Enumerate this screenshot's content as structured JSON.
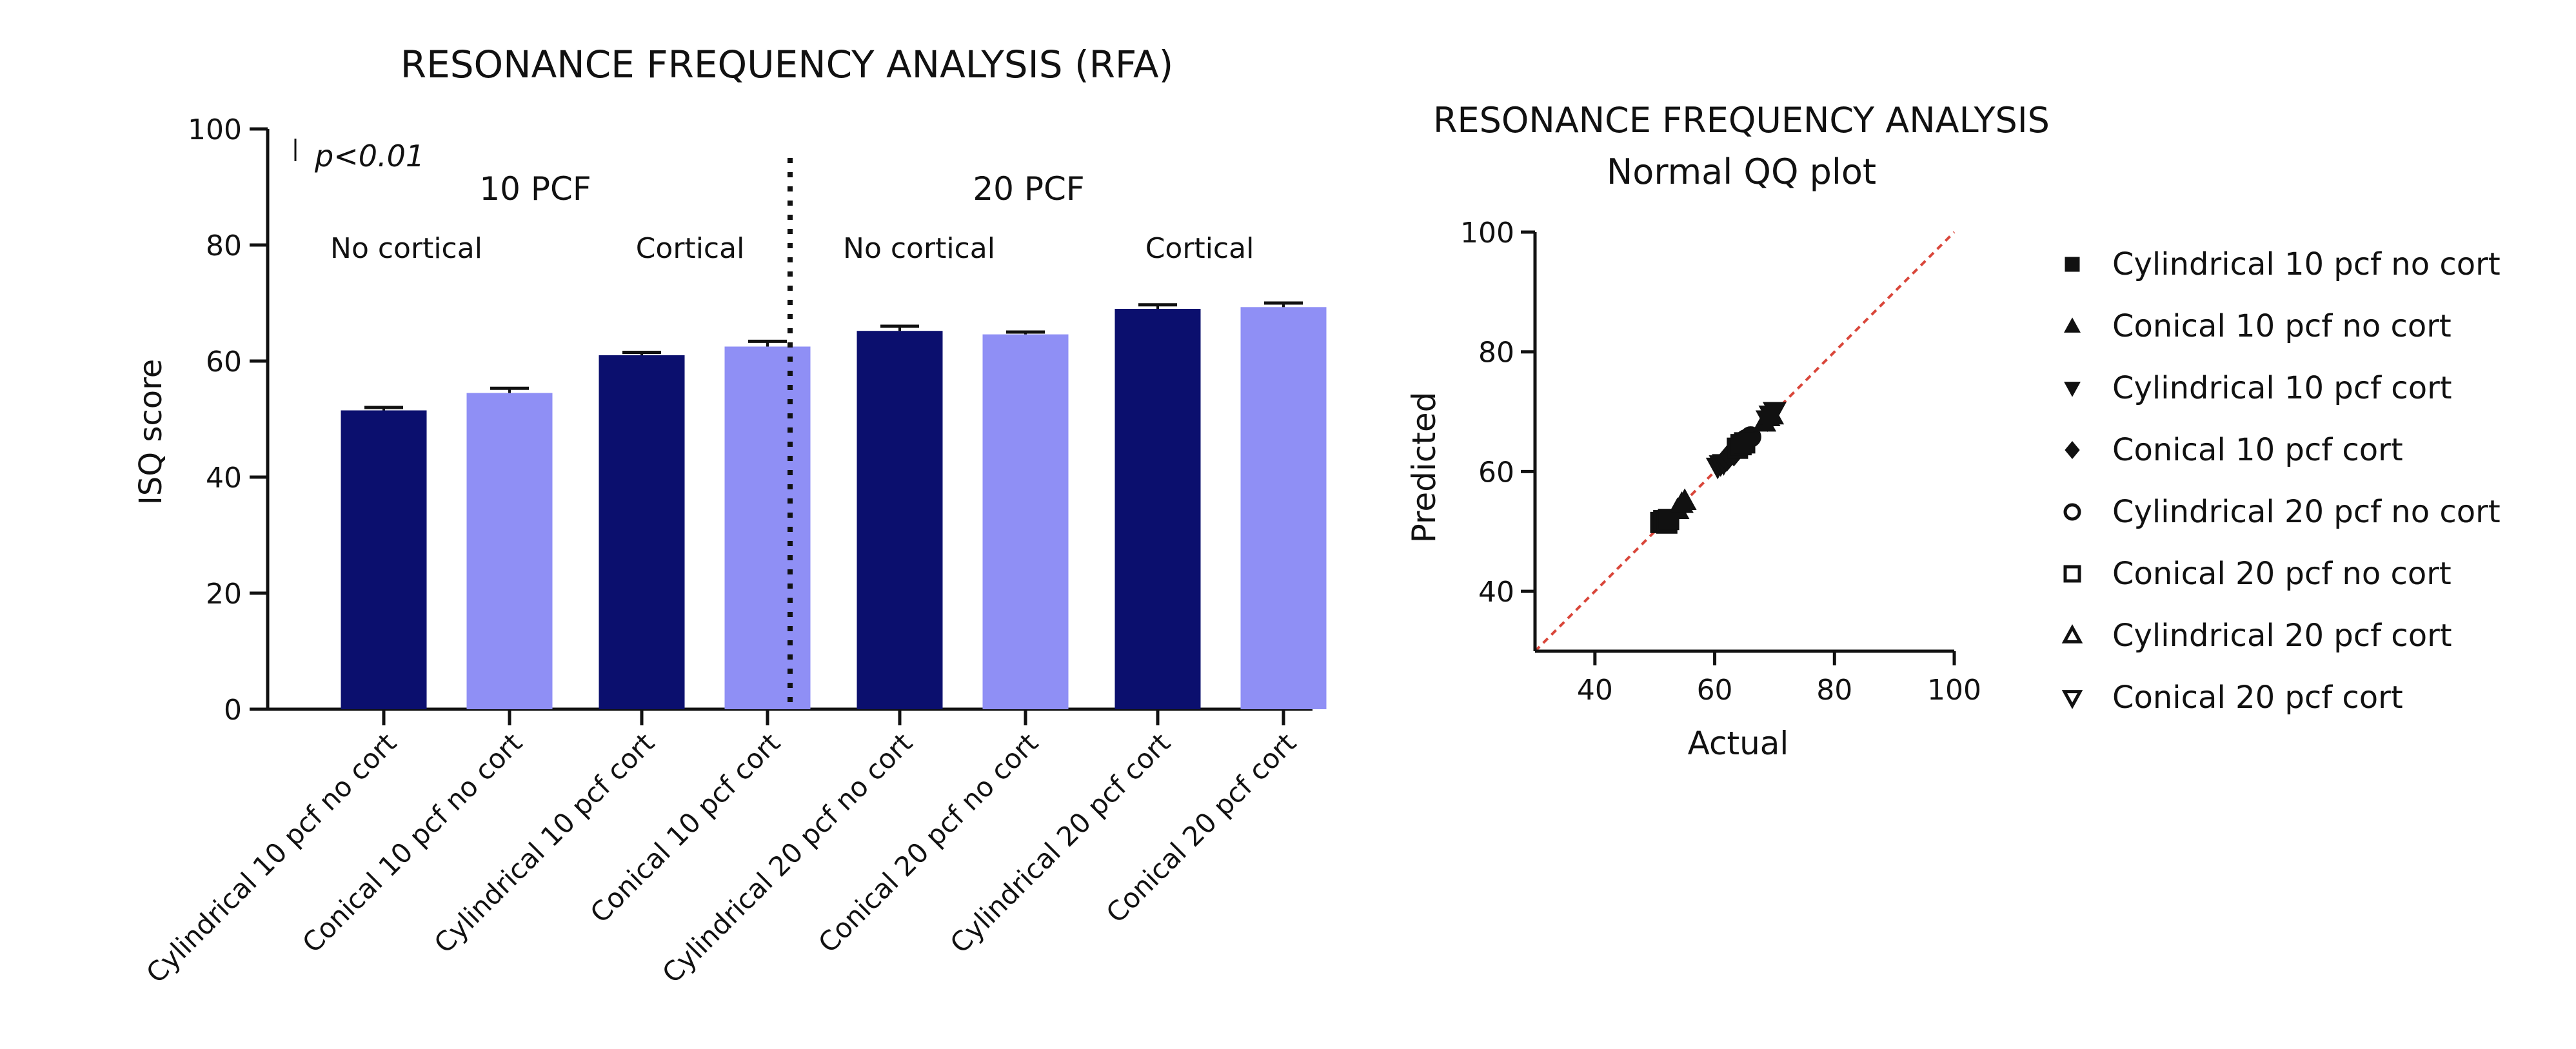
{
  "chart_data": [
    {
      "type": "bar",
      "title": "RESONANCE FREQUENCY ANALYSIS (RFA)",
      "xlabel": "",
      "ylabel": "ISQ score",
      "ylim": [
        0,
        100
      ],
      "yticks": [
        "0",
        "20",
        "40",
        "60",
        "80",
        "100"
      ],
      "annotation": "p<0.01",
      "group_labels": [
        "10 PCF",
        "20 PCF"
      ],
      "subgroup_labels": [
        "No cortical",
        "Cortical",
        "No cortical",
        "Cortical"
      ],
      "categories": [
        "Cylindrical 10 pcf no cort",
        "Conical 10 pcf no cort",
        "Cylindrical 10 pcf cort",
        "Conical 10 pcf cort",
        "Cylindrical 20 pcf no cort",
        "Conical 20 pcf no cort",
        "Cylindrical 20 pcf cort",
        "Conical 20 pcf cort"
      ],
      "values": [
        51.5,
        54.5,
        61.0,
        62.5,
        65.2,
        64.6,
        69.0,
        69.3
      ],
      "errors": [
        0.5,
        0.8,
        0.5,
        0.9,
        0.8,
        0.4,
        0.7,
        0.7
      ],
      "colors": [
        "#0b0f6e",
        "#8f8ff5",
        "#0b0f6e",
        "#8f8ff5",
        "#0b0f6e",
        "#8f8ff5",
        "#0b0f6e",
        "#8f8ff5"
      ]
    },
    {
      "type": "scatter",
      "title": "RESONANCE FREQUENCY ANALYSIS",
      "subtitle": "Normal QQ plot",
      "xlabel": "Actual",
      "ylabel": "Predicted",
      "xlim": [
        30,
        100
      ],
      "ylim": [
        30,
        100
      ],
      "xticks": [
        "40",
        "60",
        "80",
        "100"
      ],
      "yticks": [
        "40",
        "60",
        "80",
        "100"
      ],
      "reference_line": {
        "from": [
          30,
          30
        ],
        "to": [
          100,
          100
        ],
        "color": "#d9463a"
      },
      "series": [
        {
          "name": "Cylindrical 10 pcf no cort",
          "marker": "square",
          "filled": true,
          "points": [
            [
              51.0,
              51.5
            ],
            [
              51.5,
              51.8
            ],
            [
              52.0,
              51.4
            ],
            [
              52.3,
              52.0
            ]
          ]
        },
        {
          "name": "Conical 10 pcf no cort",
          "marker": "triangle-up",
          "filled": true,
          "points": [
            [
              53.8,
              53.6
            ],
            [
              54.5,
              54.6
            ],
            [
              55.0,
              55.1
            ]
          ]
        },
        {
          "name": "Cylindrical 10 pcf cort",
          "marker": "triangle-down",
          "filled": true,
          "points": [
            [
              60.5,
              60.8
            ],
            [
              61.0,
              61.2
            ],
            [
              61.5,
              61.4
            ]
          ]
        },
        {
          "name": "Conical 10 pcf cort",
          "marker": "diamond",
          "filled": true,
          "points": [
            [
              62.0,
              62.1
            ],
            [
              62.5,
              62.8
            ],
            [
              63.2,
              63.0
            ]
          ]
        },
        {
          "name": "Cylindrical 20 pcf no cort",
          "marker": "circle",
          "filled": false,
          "points": [
            [
              64.5,
              64.7
            ],
            [
              65.2,
              65.3
            ],
            [
              66.0,
              65.8
            ]
          ]
        },
        {
          "name": "Conical 20 pcf no cort",
          "marker": "square",
          "filled": false,
          "points": [
            [
              63.8,
              63.9
            ],
            [
              64.4,
              64.5
            ],
            [
              65.0,
              64.8
            ]
          ]
        },
        {
          "name": "Cylindrical 20 pcf cort",
          "marker": "triangle-up",
          "filled": false,
          "points": [
            [
              68.3,
              68.2
            ],
            [
              69.0,
              69.1
            ],
            [
              69.6,
              69.4
            ]
          ]
        },
        {
          "name": "Conical 20 pcf cort",
          "marker": "triangle-down",
          "filled": false,
          "points": [
            [
              68.8,
              68.7
            ],
            [
              69.3,
              69.5
            ],
            [
              70.0,
              70.1
            ]
          ]
        }
      ]
    }
  ]
}
